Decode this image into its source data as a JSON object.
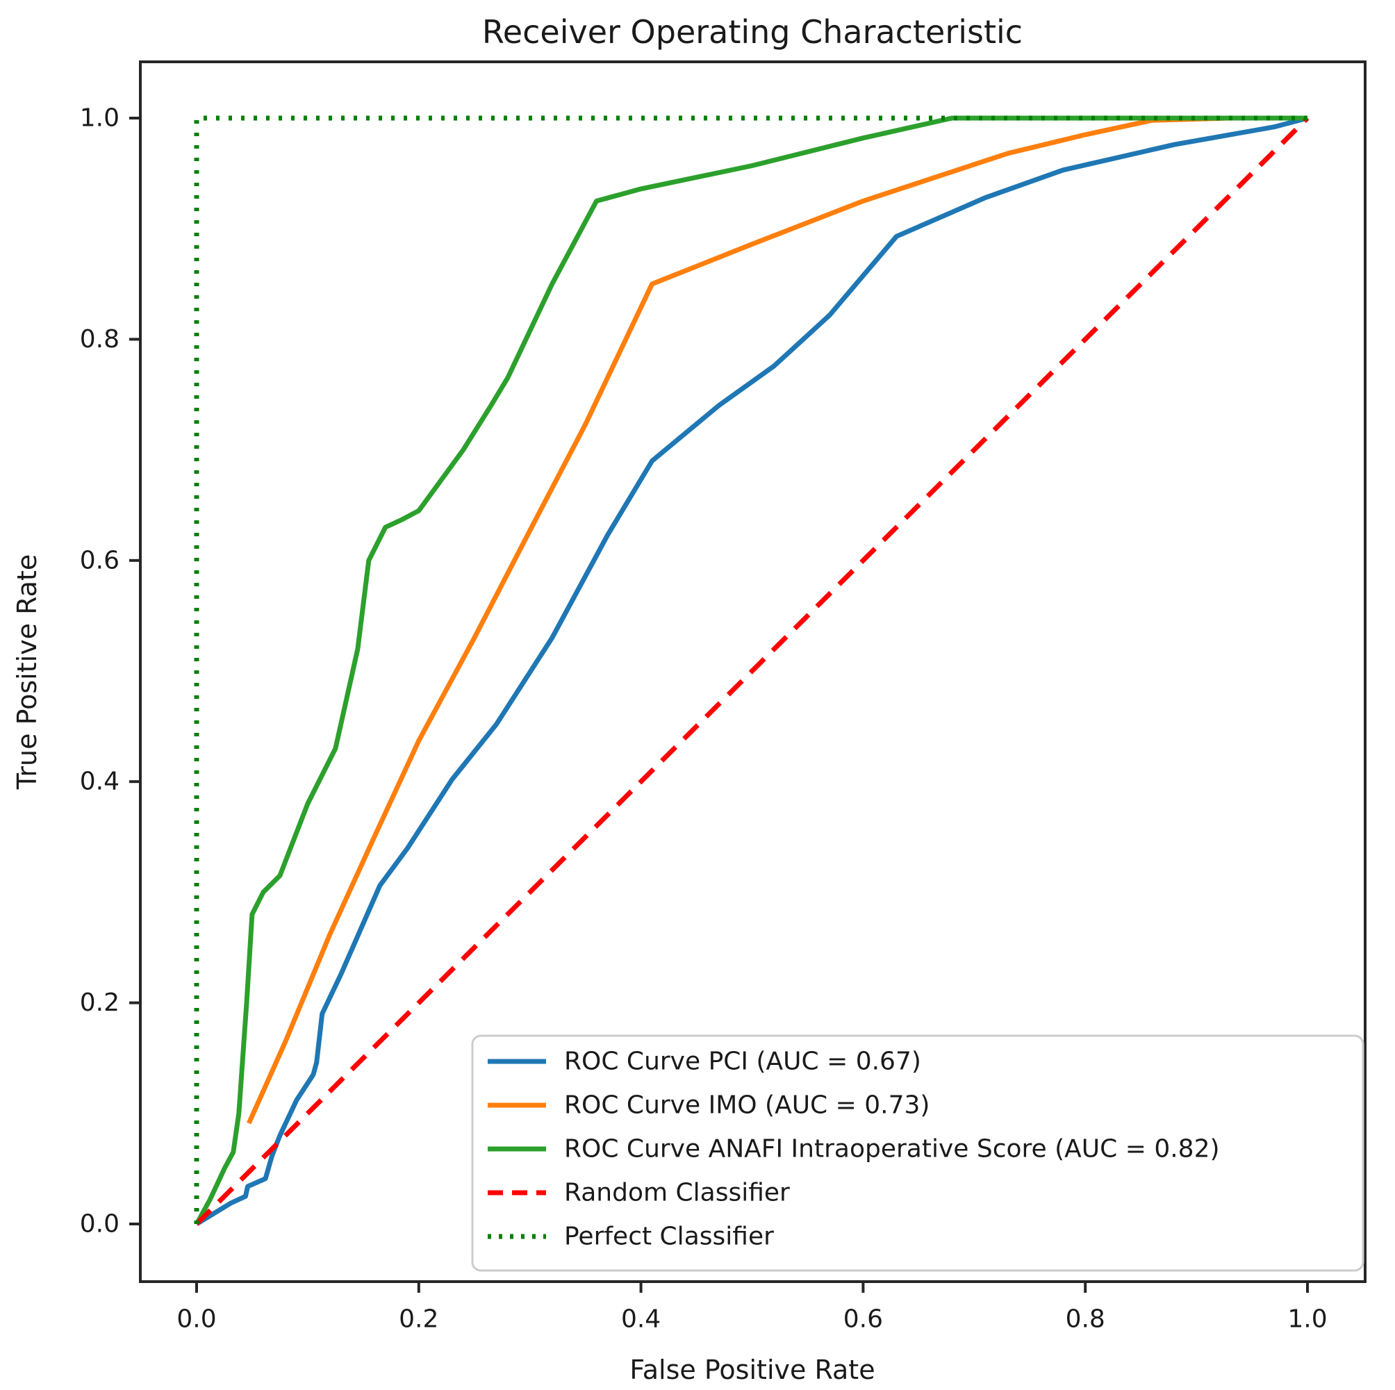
{
  "figure": {
    "title": "Receiver Operating Characteristic",
    "xlabel": "False Positive Rate",
    "ylabel": "True Positive Rate"
  },
  "chart_data": {
    "type": "line",
    "title": "Receiver Operating Characteristic",
    "xlabel": "False Positive Rate",
    "ylabel": "True Positive Rate",
    "xlim": [
      -0.05,
      1.05
    ],
    "ylim": [
      -0.05,
      1.05
    ],
    "xticks": [
      0.0,
      0.2,
      0.4,
      0.6,
      0.8,
      1.0
    ],
    "yticks": [
      0.0,
      0.2,
      0.4,
      0.6,
      0.8,
      1.0
    ],
    "xtick_labels": [
      "0.0",
      "0.2",
      "0.4",
      "0.6",
      "0.8",
      "1.0"
    ],
    "ytick_labels": [
      "0.0",
      "0.2",
      "0.4",
      "0.6",
      "0.8",
      "1.0"
    ],
    "grid": false,
    "legend_position": "lower right",
    "series": [
      {
        "name": "ROC Curve PCI (AUC = 0.67)",
        "auc": 0.67,
        "color": "#1f77b4",
        "style": "solid",
        "points": [
          [
            0,
            0
          ],
          [
            0.031,
            0.019
          ],
          [
            0.044,
            0.025
          ],
          [
            0.046,
            0.034
          ],
          [
            0.062,
            0.041
          ],
          [
            0.068,
            0.062
          ],
          [
            0.075,
            0.08
          ],
          [
            0.09,
            0.112
          ],
          [
            0.105,
            0.135
          ],
          [
            0.108,
            0.146
          ],
          [
            0.113,
            0.19
          ],
          [
            0.13,
            0.226
          ],
          [
            0.165,
            0.306
          ],
          [
            0.19,
            0.34
          ],
          [
            0.23,
            0.402
          ],
          [
            0.27,
            0.452
          ],
          [
            0.32,
            0.53
          ],
          [
            0.37,
            0.623
          ],
          [
            0.41,
            0.69
          ],
          [
            0.47,
            0.74
          ],
          [
            0.52,
            0.776
          ],
          [
            0.57,
            0.822
          ],
          [
            0.63,
            0.893
          ],
          [
            0.71,
            0.928
          ],
          [
            0.78,
            0.953
          ],
          [
            0.88,
            0.976
          ],
          [
            0.97,
            0.992
          ],
          [
            1,
            1
          ]
        ]
      },
      {
        "name": "ROC Curve IMO (AUC = 0.73)",
        "auc": 0.73,
        "color": "#ff7f0e",
        "style": "solid",
        "points": [
          [
            0.047,
            0.091
          ],
          [
            0.08,
            0.165
          ],
          [
            0.12,
            0.262
          ],
          [
            0.16,
            0.35
          ],
          [
            0.2,
            0.437
          ],
          [
            0.25,
            0.53
          ],
          [
            0.3,
            0.627
          ],
          [
            0.35,
            0.723
          ],
          [
            0.41,
            0.85
          ],
          [
            0.5,
            0.886
          ],
          [
            0.6,
            0.925
          ],
          [
            0.73,
            0.968
          ],
          [
            0.8,
            0.985
          ],
          [
            0.86,
            0.998
          ],
          [
            0.93,
            1
          ],
          [
            1,
            1
          ]
        ]
      },
      {
        "name": "ROC Curve ANAFI Intraoperative Score (AUC = 0.82)",
        "auc": 0.82,
        "color": "#2ca02c",
        "style": "solid",
        "points": [
          [
            0,
            0
          ],
          [
            0.012,
            0.022
          ],
          [
            0.025,
            0.05
          ],
          [
            0.033,
            0.065
          ],
          [
            0.038,
            0.1
          ],
          [
            0.045,
            0.2
          ],
          [
            0.05,
            0.28
          ],
          [
            0.06,
            0.3
          ],
          [
            0.075,
            0.315
          ],
          [
            0.1,
            0.38
          ],
          [
            0.125,
            0.43
          ],
          [
            0.145,
            0.52
          ],
          [
            0.155,
            0.6
          ],
          [
            0.17,
            0.63
          ],
          [
            0.185,
            0.637
          ],
          [
            0.2,
            0.645
          ],
          [
            0.24,
            0.7
          ],
          [
            0.265,
            0.74
          ],
          [
            0.28,
            0.765
          ],
          [
            0.32,
            0.85
          ],
          [
            0.36,
            0.925
          ],
          [
            0.4,
            0.936
          ],
          [
            0.5,
            0.957
          ],
          [
            0.6,
            0.982
          ],
          [
            0.68,
            1
          ],
          [
            1,
            1
          ]
        ]
      },
      {
        "name": "Random Classifier",
        "color": "#ff0000",
        "style": "dashed",
        "points": [
          [
            0,
            0
          ],
          [
            1,
            1
          ]
        ]
      },
      {
        "name": "Perfect Classifier",
        "color": "#008000",
        "style": "dotted",
        "points": [
          [
            0,
            0
          ],
          [
            0,
            1
          ],
          [
            1,
            1
          ]
        ]
      }
    ]
  }
}
